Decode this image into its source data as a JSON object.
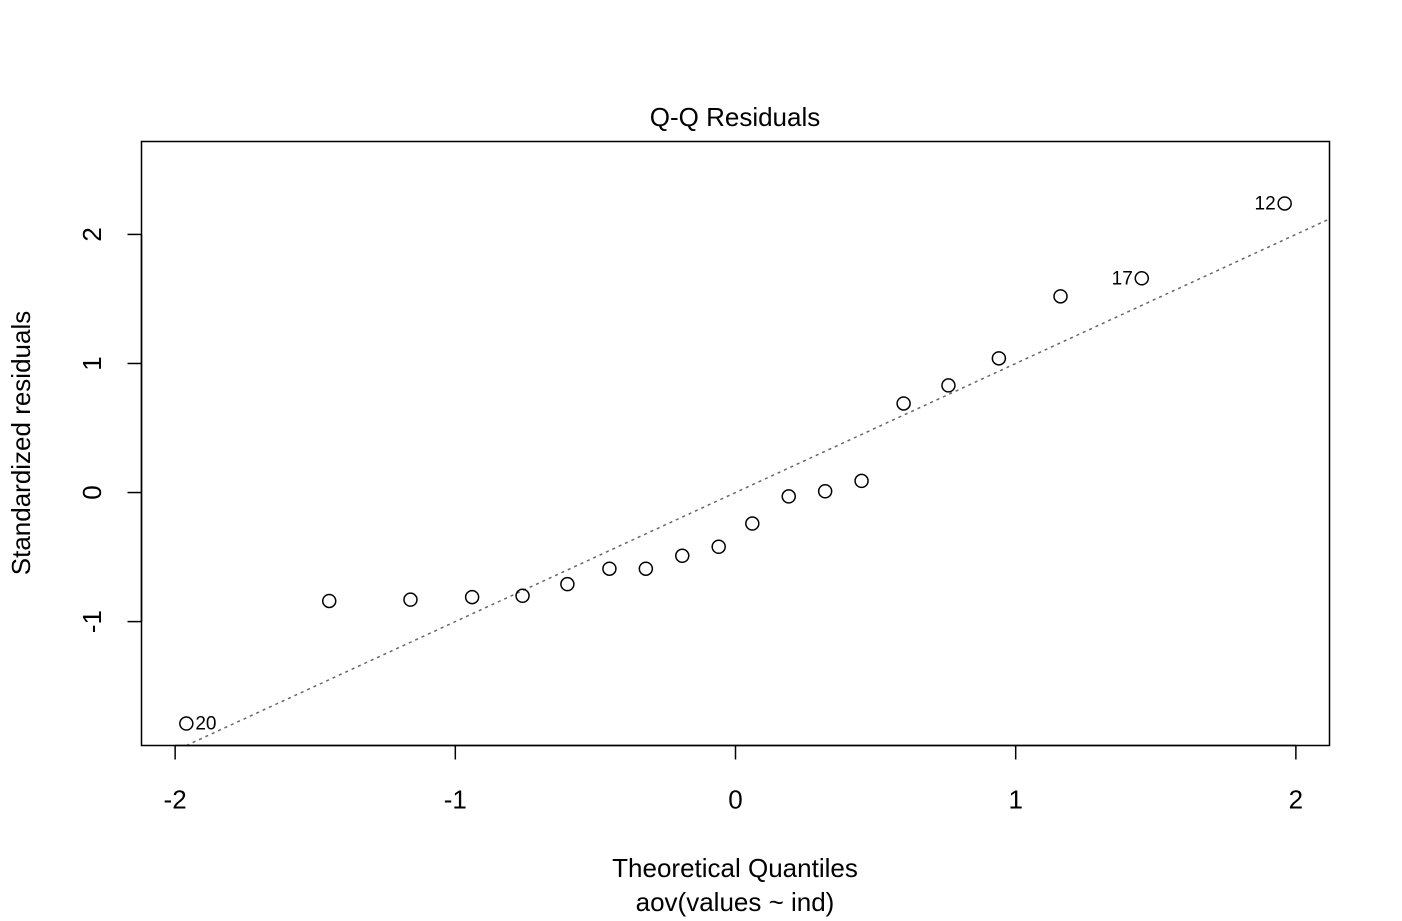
{
  "chart_data": {
    "type": "scatter",
    "title": "Q-Q Residuals",
    "xlabel": "Theoretical Quantiles",
    "subtitle": "aov(values ~ ind)",
    "ylabel": "Standardized residuals",
    "xlim": [
      -2.12,
      2.12
    ],
    "ylim": [
      -1.96,
      2.72
    ],
    "x_ticks": [
      {
        "value": -2,
        "label": "-2"
      },
      {
        "value": -1,
        "label": "-1"
      },
      {
        "value": 0,
        "label": "0"
      },
      {
        "value": 1,
        "label": "1"
      },
      {
        "value": 2,
        "label": "2"
      }
    ],
    "y_ticks": [
      {
        "value": -1,
        "label": "-1"
      },
      {
        "value": 0,
        "label": "0"
      },
      {
        "value": 1,
        "label": "1"
      },
      {
        "value": 2,
        "label": "2"
      }
    ],
    "points": [
      {
        "x": -1.96,
        "y": -1.79,
        "label": "20"
      },
      {
        "x": -1.45,
        "y": -0.84,
        "label": ""
      },
      {
        "x": -1.16,
        "y": -0.83,
        "label": ""
      },
      {
        "x": -0.94,
        "y": -0.81,
        "label": ""
      },
      {
        "x": -0.76,
        "y": -0.8,
        "label": ""
      },
      {
        "x": -0.6,
        "y": -0.71,
        "label": ""
      },
      {
        "x": -0.45,
        "y": -0.59,
        "label": ""
      },
      {
        "x": -0.32,
        "y": -0.59,
        "label": ""
      },
      {
        "x": -0.19,
        "y": -0.49,
        "label": ""
      },
      {
        "x": -0.06,
        "y": -0.42,
        "label": ""
      },
      {
        "x": 0.06,
        "y": -0.24,
        "label": ""
      },
      {
        "x": 0.19,
        "y": -0.03,
        "label": ""
      },
      {
        "x": 0.32,
        "y": 0.01,
        "label": ""
      },
      {
        "x": 0.45,
        "y": 0.09,
        "label": ""
      },
      {
        "x": 0.6,
        "y": 0.69,
        "label": ""
      },
      {
        "x": 0.76,
        "y": 0.83,
        "label": ""
      },
      {
        "x": 0.94,
        "y": 1.04,
        "label": ""
      },
      {
        "x": 1.16,
        "y": 1.52,
        "label": ""
      },
      {
        "x": 1.45,
        "y": 1.66,
        "label": "17"
      },
      {
        "x": 1.96,
        "y": 2.24,
        "label": "12"
      }
    ],
    "reference_line": {
      "slope": 1.0,
      "intercept": 0.0,
      "style": "dotted",
      "color": "#666666"
    },
    "grid": false,
    "legend": "none"
  }
}
